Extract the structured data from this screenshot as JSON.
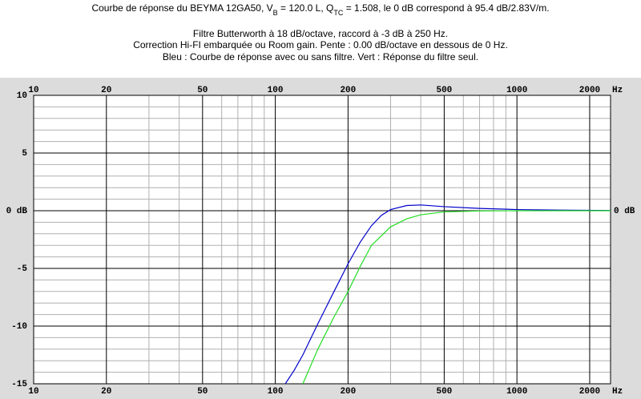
{
  "chart_data": {
    "type": "line",
    "title_lines": [
      [
        "Courbe de réponse du BEYMA 12GA50, V",
        "B",
        " = 120.0 L, Q",
        "TC",
        " = 1.508, le 0 dB correspond à 95.4 dB/2.83V/m."
      ],
      [
        "Filtre Butterworth à 18 dB/octave, raccord à -3 dB à 250 Hz."
      ],
      [
        "Correction Hi-FI embarquée ou Room gain. Pente : 0.00 dB/octave en dessous de 0 Hz."
      ],
      [
        "Bleu : Courbe de réponse avec ou sans filtre. Vert : Réponse du filtre seul."
      ]
    ],
    "x_unit": "Hz",
    "log_x": true,
    "xlim": [
      10,
      2440
    ],
    "xticks": [
      10,
      20,
      50,
      100,
      200,
      500,
      1000,
      2000
    ],
    "xminorticks": [
      30,
      40,
      60,
      70,
      80,
      90,
      300,
      400,
      600,
      700,
      800,
      900
    ],
    "ylim": [
      -15,
      10
    ],
    "yticks": [
      10,
      5,
      {
        "value": 0,
        "label": "0 dB"
      },
      -5,
      -10,
      -15
    ],
    "yminorticks": [
      9,
      8,
      7,
      6,
      4,
      3,
      2,
      1,
      -1,
      -2,
      -3,
      -4,
      -6,
      -7,
      -8,
      -9,
      -11,
      -12,
      -13,
      -14
    ],
    "grid": true,
    "series": [
      {
        "color": "#0000cc",
        "x": [
          110,
          120,
          130,
          150,
          175,
          200,
          225,
          250,
          275,
          300,
          350,
          400,
          500,
          700,
          1000,
          1500,
          2440
        ],
        "values": [
          -15,
          -13.8,
          -12.5,
          -9.8,
          -7,
          -4.6,
          -2.7,
          -1.3,
          -0.4,
          0.1,
          0.45,
          0.5,
          0.35,
          0.2,
          0.1,
          0.05,
          0.02
        ]
      },
      {
        "color": "#22dd22",
        "x": [
          130,
          150,
          175,
          200,
          225,
          250,
          300,
          350,
          400,
          500,
          700,
          1000,
          2440
        ],
        "values": [
          -15,
          -12,
          -9.2,
          -7,
          -4.8,
          -3,
          -1.4,
          -0.7,
          -0.35,
          -0.1,
          -0.02,
          0,
          0
        ]
      }
    ]
  }
}
